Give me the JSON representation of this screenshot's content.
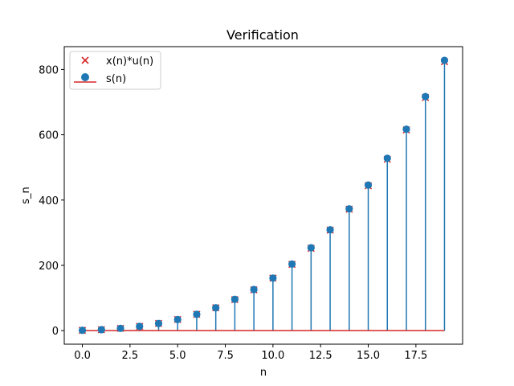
{
  "chart_data": {
    "type": "stem",
    "title": "Verification",
    "xlabel": "n",
    "ylabel": "s_n",
    "xlim": [
      -0.95,
      19.95
    ],
    "ylim": [
      -41.5,
      870
    ],
    "x_ticks": [
      0.0,
      2.5,
      5.0,
      7.5,
      10.0,
      12.5,
      15.0,
      17.5
    ],
    "x_tick_labels": [
      "0.0",
      "2.5",
      "5.0",
      "7.5",
      "10.0",
      "12.5",
      "15.0",
      "17.5"
    ],
    "y_ticks": [
      0,
      200,
      400,
      600,
      800
    ],
    "y_tick_labels": [
      "0",
      "200",
      "400",
      "600",
      "800"
    ],
    "grid": false,
    "legend_position": "top-left",
    "series": [
      {
        "name": "x(n)*u(n)",
        "marker": "x",
        "color": "#d62728",
        "x": [
          0,
          1,
          2,
          3,
          4,
          5,
          6,
          7,
          8,
          9,
          10,
          11,
          12,
          13,
          14,
          15,
          16,
          17,
          18,
          19
        ],
        "values": [
          1,
          3,
          7,
          13,
          22,
          34,
          50,
          70,
          95,
          125,
          161,
          203,
          252,
          308,
          372,
          444,
          525,
          615,
          714,
          824
        ]
      },
      {
        "name": "s(n)",
        "marker": "o",
        "color": "#1f77b4",
        "baseline_color": "#d62728",
        "x": [
          0,
          1,
          2,
          3,
          4,
          5,
          6,
          7,
          8,
          9,
          10,
          11,
          12,
          13,
          14,
          15,
          16,
          17,
          18,
          19
        ],
        "values": [
          1,
          3,
          7,
          13,
          22,
          34,
          50,
          70,
          96,
          126,
          161,
          204,
          254,
          309,
          373,
          446,
          528,
          617,
          717,
          828
        ]
      }
    ]
  }
}
